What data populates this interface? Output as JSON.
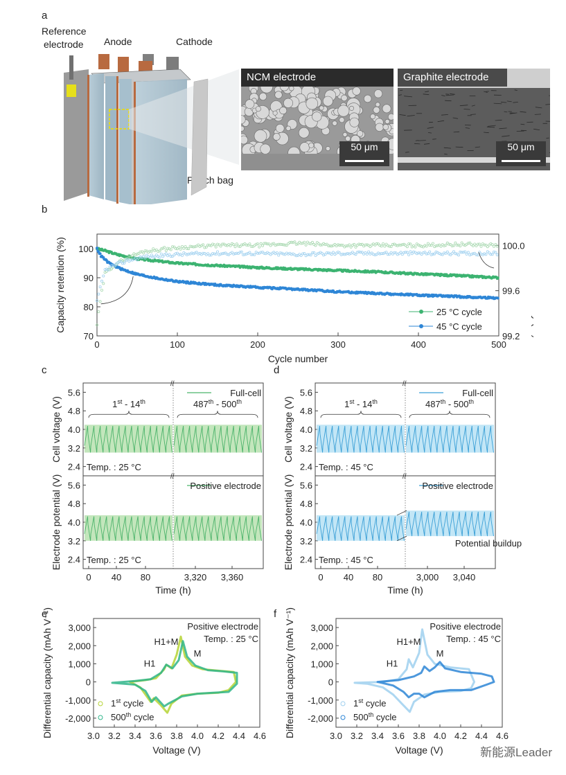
{
  "panels": {
    "a": {
      "letter": "a",
      "labels": {
        "reference": "Reference",
        "electrode": "electrode",
        "anode": "Anode",
        "cathode": "Cathode",
        "pouch": "Pouch bag"
      },
      "sem": [
        {
          "title": "NCM electrode",
          "scale": "50 μm"
        },
        {
          "title": "Graphite electrode",
          "scale": "50 μm"
        }
      ]
    },
    "b": {
      "letter": "b"
    },
    "c": {
      "letter": "c"
    },
    "d": {
      "letter": "d"
    },
    "e": {
      "letter": "e"
    },
    "f": {
      "letter": "f"
    }
  },
  "watermark": "新能源Leader",
  "colors": {
    "green": "#3cb371",
    "blue": "#2e86d6",
    "lightgreen": "#a8d8b0",
    "lightblue": "#9fd0ef",
    "yellowgreen": "#b5d334",
    "teal": "#2fb58a",
    "fill_green": "#a9dca0",
    "fill_blue": "#a8dcf2"
  },
  "chart_data": [
    {
      "id": "b",
      "type": "scatter",
      "title": "",
      "xlabel": "Cycle number",
      "ylabel": "Capacity retention (%)",
      "y2label": "Coulombic efficiency (%)",
      "xlim": [
        0,
        500
      ],
      "ylim": [
        70,
        105
      ],
      "y2lim": [
        99.2,
        100.1
      ],
      "xticks": [
        "0",
        "100",
        "200",
        "300",
        "400",
        "500"
      ],
      "yticks": [
        "70",
        "80",
        "90",
        "100"
      ],
      "y2ticks": [
        "99.2",
        "99.6",
        "100.0"
      ],
      "legend": {
        "position": "bottom-right",
        "entries": [
          "25 °C cycle",
          "45 °C cycle"
        ]
      },
      "series": [
        {
          "name": "25 °C cycle capacity",
          "x": [
            0,
            10,
            25,
            50,
            100,
            150,
            200,
            250,
            300,
            350,
            400,
            450,
            500
          ],
          "y": [
            100,
            99.3,
            98,
            96.5,
            95,
            94.2,
            93.5,
            93,
            92.5,
            92,
            91.3,
            90.7,
            90
          ]
        },
        {
          "name": "45 °C cycle capacity",
          "x": [
            0,
            5,
            15,
            30,
            50,
            75,
            100,
            150,
            200,
            250,
            300,
            350,
            400,
            450,
            500
          ],
          "y": [
            100,
            97.5,
            95,
            93,
            91.2,
            89.8,
            88.7,
            87.5,
            86.7,
            86,
            85.2,
            84.6,
            84,
            83.5,
            83
          ]
        },
        {
          "name": "25 °C cycle CE",
          "x": [
            0,
            5,
            10,
            20,
            40,
            60,
            100,
            150,
            200,
            250,
            300,
            350,
            400,
            450,
            500
          ],
          "y": [
            99.3,
            99.55,
            99.75,
            99.82,
            99.9,
            99.95,
            99.98,
            100.0,
            100.0,
            100.02,
            100.0,
            100.0,
            100.0,
            100.01,
            100.0
          ]
        },
        {
          "name": "45 °C cycle CE",
          "x": [
            0,
            5,
            10,
            20,
            40,
            60,
            100,
            150,
            200,
            250,
            300,
            350,
            400,
            450,
            500
          ],
          "y": [
            99.5,
            99.65,
            99.78,
            99.82,
            99.87,
            99.9,
            99.92,
            99.93,
            99.93,
            99.92,
            99.93,
            99.93,
            99.93,
            99.93,
            99.93
          ]
        }
      ]
    },
    {
      "id": "c",
      "type": "line",
      "xlabel": "Time (h)",
      "xticks": [
        "0",
        "40",
        "80",
        "3,320",
        "3,360"
      ],
      "subplots": [
        {
          "ylabel": "Cell voltage (V)",
          "yticks": [
            "2.4",
            "3.2",
            "4.0",
            "4.8",
            "5.6"
          ],
          "ylim": [
            2.0,
            6.0
          ],
          "legend": "Full-cell",
          "temp": "Temp. : 25 °C",
          "brace_left": "1st - 14th",
          "brace_right": "487th - 500th",
          "vmin": 3.0,
          "vmax": 4.2,
          "cycles_per_segment": 14
        },
        {
          "ylabel": "Electrode potential (V)",
          "yticks": [
            "2.4",
            "3.2",
            "4.0",
            "4.8",
            "5.6"
          ],
          "ylim": [
            2.0,
            6.0
          ],
          "legend": "Positive electrode",
          "temp": "Temp. : 25 °C",
          "vmin": 3.2,
          "vmax": 4.3,
          "cycles_per_segment": 14
        }
      ]
    },
    {
      "id": "d",
      "type": "line",
      "xlabel": "Time (h)",
      "xticks": [
        "0",
        "40",
        "80",
        "3,000",
        "3,040"
      ],
      "subplots": [
        {
          "ylabel": "Cell voltage (V)",
          "yticks": [
            "2.4",
            "3.2",
            "4.0",
            "4.8",
            "5.6"
          ],
          "ylim": [
            2.0,
            6.0
          ],
          "legend": "Full-cell",
          "temp": "Temp. : 45 °C",
          "brace_left": "1st - 14th",
          "brace_right": "487th - 500th",
          "vmin": 3.0,
          "vmax": 4.2,
          "cycles_per_segment": 14
        },
        {
          "ylabel": "Electrode potential (V)",
          "yticks": [
            "2.4",
            "3.2",
            "4.0",
            "4.8",
            "5.6"
          ],
          "ylim": [
            2.0,
            6.0
          ],
          "legend": "Positive electrode",
          "temp": "Temp. : 45 °C",
          "annotation": "Potential buildup",
          "vmin": 3.2,
          "vmax": 4.3,
          "vmin2": 3.4,
          "vmax2": 4.5,
          "cycles_per_segment": 14
        }
      ]
    },
    {
      "id": "e",
      "type": "line",
      "xlabel": "Voltage (V)",
      "ylabel": "Differential capacity (mAh V⁻¹)",
      "xlim": [
        3.0,
        4.6
      ],
      "ylim": [
        -2500,
        3500
      ],
      "xticks": [
        "3.0",
        "3.2",
        "3.4",
        "3.6",
        "3.8",
        "4.0",
        "4.2",
        "4.4",
        "4.6"
      ],
      "yticks": [
        "-2,000",
        "-1,000",
        "0",
        "1,000",
        "2,000",
        "3,000"
      ],
      "annotations": [
        "Positive electrode",
        "Temp. : 25 °C",
        "H1+M",
        "H1",
        "M"
      ],
      "legend": {
        "position": "bottom-left",
        "entries": [
          "1st cycle",
          "500th cycle"
        ]
      },
      "series": [
        {
          "name": "1st cycle",
          "charge": {
            "x": [
              3.35,
              3.5,
              3.6,
              3.68,
              3.7,
              3.75,
              3.8,
              3.84,
              3.88,
              3.95,
              4.05,
              4.2,
              4.35,
              4.37
            ],
            "y": [
              0,
              100,
              200,
              700,
              950,
              750,
              1500,
              2500,
              1400,
              900,
              700,
              620,
              550,
              0
            ]
          },
          "discharge": {
            "x": [
              4.37,
              4.3,
              4.2,
              4.0,
              3.85,
              3.75,
              3.71,
              3.65,
              3.58,
              3.55,
              3.45,
              3.35
            ],
            "y": [
              0,
              -450,
              -600,
              -650,
              -750,
              -1200,
              -1700,
              -1300,
              -900,
              -1100,
              -300,
              0
            ]
          }
        },
        {
          "name": "500th cycle",
          "charge": {
            "x": [
              3.18,
              3.4,
              3.55,
              3.65,
              3.7,
              3.76,
              3.82,
              3.86,
              3.9,
              3.98,
              4.1,
              4.25,
              4.38
            ],
            "y": [
              -50,
              50,
              150,
              500,
              950,
              750,
              1200,
              2250,
              1400,
              900,
              650,
              580,
              500
            ]
          },
          "discharge": {
            "x": [
              4.38,
              4.3,
              4.15,
              4.0,
              3.85,
              3.72,
              3.68,
              3.6,
              3.56,
              3.5,
              3.4,
              3.18
            ],
            "y": [
              -100,
              -550,
              -600,
              -650,
              -800,
              -1200,
              -1350,
              -850,
              -1100,
              -500,
              -150,
              -50
            ]
          }
        }
      ]
    },
    {
      "id": "f",
      "type": "line",
      "xlabel": "Voltage (V)",
      "ylabel": "Differential capacity (mAh V⁻¹)",
      "xlim": [
        3.0,
        4.6
      ],
      "ylim": [
        -2500,
        3500
      ],
      "xticks": [
        "3.0",
        "3.2",
        "3.4",
        "3.6",
        "3.8",
        "4.0",
        "4.2",
        "4.4",
        "4.6"
      ],
      "yticks": [
        "-2,000",
        "-1,000",
        "0",
        "1,000",
        "2,000",
        "3,000"
      ],
      "annotations": [
        "Positive electrode",
        "Temp. : 45 °C",
        "H1+M",
        "H1",
        "M"
      ],
      "legend": {
        "position": "bottom-left",
        "entries": [
          "1st cycle",
          "500th cycle"
        ]
      },
      "series": [
        {
          "name": "1st cycle",
          "charge": {
            "x": [
              3.18,
              3.45,
              3.6,
              3.68,
              3.7,
              3.74,
              3.8,
              3.83,
              3.88,
              3.95,
              4.1,
              4.28,
              4.33
            ],
            "y": [
              -50,
              0,
              150,
              700,
              1250,
              800,
              1600,
              2900,
              1500,
              1000,
              800,
              700,
              0
            ]
          },
          "discharge": {
            "x": [
              4.33,
              4.3,
              4.2,
              4.0,
              3.85,
              3.75,
              3.71,
              3.65,
              3.55,
              3.45,
              3.3,
              3.18
            ],
            "y": [
              0,
              -350,
              -500,
              -550,
              -700,
              -1100,
              -1650,
              -1300,
              -700,
              -300,
              -100,
              -50
            ]
          }
        },
        {
          "name": "500th cycle",
          "charge": {
            "x": [
              3.4,
              3.6,
              3.75,
              3.82,
              3.85,
              3.9,
              3.95,
              4.0,
              4.05,
              4.2,
              4.4,
              4.5,
              4.52
            ],
            "y": [
              0,
              100,
              300,
              500,
              850,
              600,
              800,
              1100,
              750,
              550,
              450,
              300,
              0
            ]
          },
          "discharge": {
            "x": [
              4.52,
              4.45,
              4.3,
              4.1,
              3.95,
              3.85,
              3.8,
              3.75,
              3.7,
              3.65,
              3.55,
              3.4
            ],
            "y": [
              0,
              -150,
              -450,
              -450,
              -550,
              -850,
              -650,
              -650,
              -850,
              -550,
              -200,
              0
            ]
          }
        }
      ]
    }
  ]
}
